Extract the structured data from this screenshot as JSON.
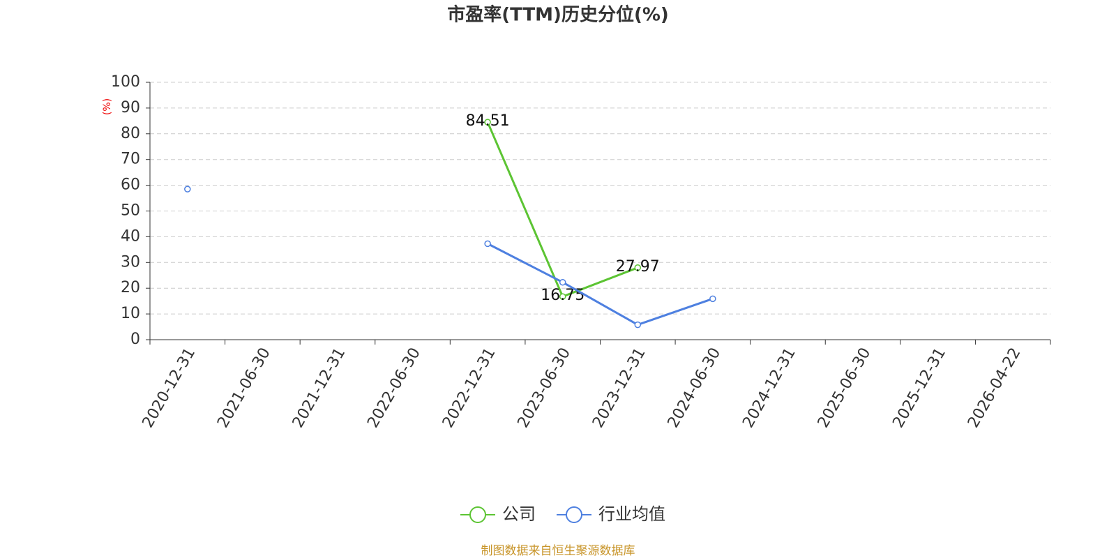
{
  "chart_data": {
    "type": "line",
    "title": "市盈率(TTM)历史分位(%)",
    "y_axis_label": "(%)",
    "categories": [
      "2020-12-31",
      "2021-06-30",
      "2021-12-31",
      "2022-06-30",
      "2022-12-31",
      "2023-06-30",
      "2023-12-31",
      "2024-06-30",
      "2024-12-31",
      "2025-06-30",
      "2025-12-31",
      "2026-04-22"
    ],
    "series": [
      {
        "name": "公司",
        "color": "#5cc433",
        "values": [
          null,
          null,
          null,
          null,
          84.51,
          16.75,
          27.97,
          null,
          null,
          null,
          null,
          null
        ],
        "data_labels": true
      },
      {
        "name": "行业均值",
        "color": "#4e80e0",
        "values": [
          58.5,
          null,
          null,
          null,
          37.3,
          22.3,
          5.8,
          15.9,
          null,
          null,
          null,
          null
        ],
        "data_labels": false
      }
    ],
    "ylim": [
      0,
      100
    ],
    "yticks": [
      0,
      10,
      20,
      30,
      40,
      50,
      60,
      70,
      80,
      90,
      100
    ],
    "grid": true,
    "legend": "bottom",
    "source": "制图数据来自恒生聚源数据库"
  }
}
